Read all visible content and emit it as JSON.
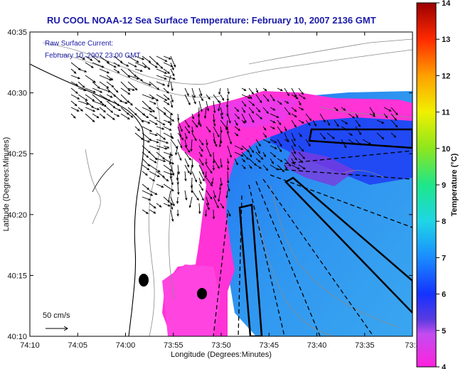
{
  "title": "RU COOL  NOAA-12  Sea Surface Temperature:  February 10, 2007 2136 GMT",
  "legend": {
    "line1": "Raw Surface Current:",
    "line2": "February 10, 2007 23:00 GMT"
  },
  "axes": {
    "xlabel": "Longitude (Degrees:Minutes)",
    "ylabel": "Latitude (Degrees:Minutes)",
    "xticks": [
      "74:10",
      "74:05",
      "74:00",
      "73:55",
      "73:50",
      "73:45",
      "73:40",
      "73:35",
      "73:3"
    ],
    "yticks": [
      "40:35",
      "40:30",
      "40:25",
      "40:20",
      "40:15",
      "40:10"
    ]
  },
  "colorbar": {
    "label": "Temperature (°C)",
    "ticks": [
      "14",
      "13",
      "12",
      "11",
      "10",
      "9",
      "8",
      "7",
      "6",
      "5",
      "4"
    ],
    "range": [
      4,
      14
    ]
  },
  "scale_arrow": {
    "label": "50 cm/s"
  },
  "colors": {
    "title": "#1a1aa8",
    "land": "#ffffff",
    "cold_water": "#2f8ff0",
    "warm_water": "#ff33d6",
    "coast": "#000000"
  }
}
